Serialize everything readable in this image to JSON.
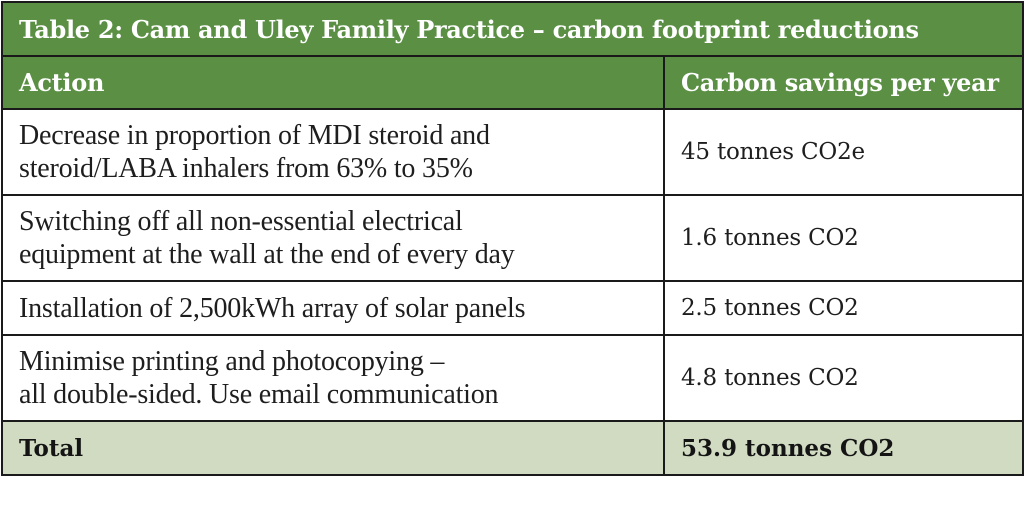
{
  "table": {
    "title": "Table 2: Cam and Uley Family Practice – carbon footprint reductions",
    "headers": {
      "action": "Action",
      "savings": "Carbon savings per year"
    },
    "rows": [
      {
        "action_line1": "Decrease in proportion of MDI steroid and",
        "action_line2": "steroid/LABA inhalers from 63% to 35%",
        "savings": "45 tonnes CO2e"
      },
      {
        "action_line1": "Switching off all non-essential electrical",
        "action_line2": "equipment at the wall at the end of every day",
        "savings": "1.6 tonnes CO2"
      },
      {
        "action_line1": "Installation of 2,500kWh array of solar panels",
        "action_line2": "",
        "savings": "2.5 tonnes CO2"
      },
      {
        "action_line1": "Minimise printing and photocopying –",
        "action_line2": "all double-sided. Use email communication",
        "savings": "4.8 tonnes CO2"
      }
    ],
    "total": {
      "label": "Total",
      "value": "53.9 tonnes CO2"
    }
  },
  "colors": {
    "header_green": "#5a8f44",
    "total_bg": "#d0dbc2",
    "border": "#1a1a1a"
  }
}
